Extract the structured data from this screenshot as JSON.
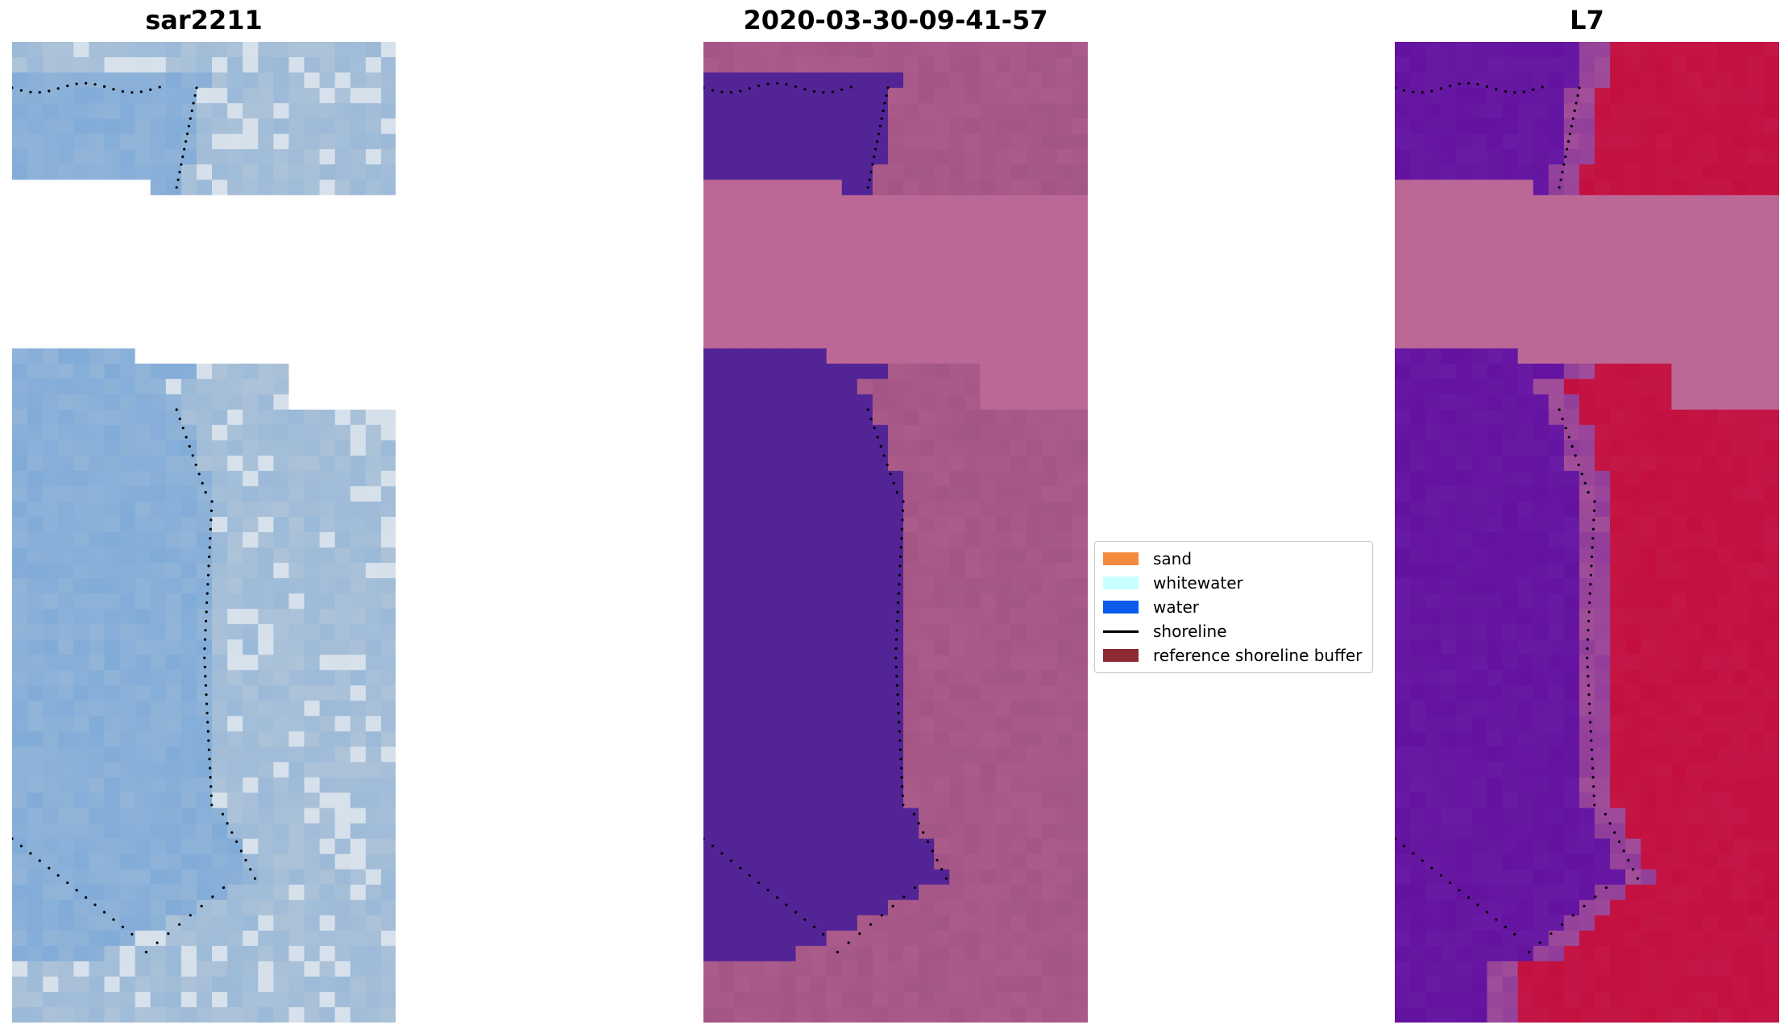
{
  "panels": [
    {
      "title": "sar2211",
      "kind": "rgb"
    },
    {
      "title": "2020-03-30-09-41-57",
      "kind": "classified"
    },
    {
      "title": "L7",
      "kind": "mndwi"
    }
  ],
  "legend": {
    "items": [
      {
        "label": "sand",
        "color": "#f68a3c",
        "kind": "patch"
      },
      {
        "label": "whitewater",
        "color": "#c7ffff",
        "kind": "patch"
      },
      {
        "label": "water",
        "color": "#0b5ced",
        "kind": "patch"
      },
      {
        "label": "shoreline",
        "color": "#000000",
        "kind": "line"
      },
      {
        "label": "reference shoreline buffer",
        "color": "#8b2a35",
        "kind": "patch"
      }
    ]
  },
  "colors": {
    "nodata": "#ffffff",
    "classified_water": "#532496",
    "classified_land": "#a35585",
    "buffer_pink": "#bc6896",
    "mndwi_land": "#c3103f",
    "mndwi_water": "#6412a0",
    "rgb_water": "#78a7d8",
    "rgb_land": "#b7c8d8"
  }
}
